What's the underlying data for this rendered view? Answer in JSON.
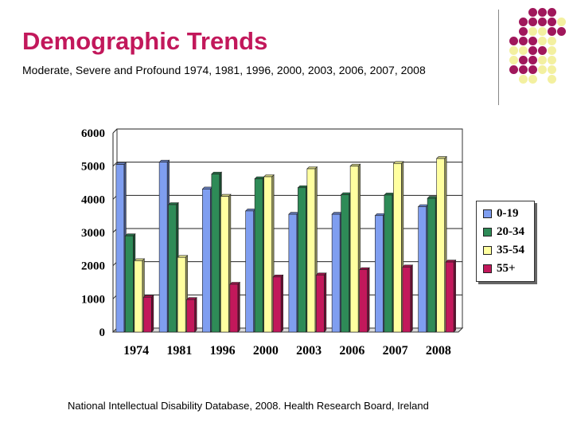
{
  "header": {
    "title": "Demographic Trends",
    "subtitle": "Moderate, Severe and Profound 1974, 1981, 1996, 2000, 2003, 2006, 2007, 2008"
  },
  "footer": {
    "source": "National Intellectual Disability Database, 2008. Health Research Board, Ireland"
  },
  "colors": {
    "title": "#c2185b",
    "dot_magenta": "#a0175b",
    "dot_yellow": "#f3f0a0",
    "series": [
      "#7f9ef0",
      "#2e8b57",
      "#ffffa0",
      "#c2185b"
    ]
  },
  "chart_data": {
    "type": "bar",
    "style": "3d-clustered",
    "categories": [
      "1974",
      "1981",
      "1996",
      "2000",
      "2003",
      "2006",
      "2007",
      "2008"
    ],
    "series": [
      {
        "name": "0-19",
        "values": [
          5050,
          5120,
          4310,
          3650,
          3550,
          3550,
          3510,
          3780
        ]
      },
      {
        "name": "20-34",
        "values": [
          2900,
          3840,
          4760,
          4620,
          4350,
          4140,
          4130,
          4030
        ]
      },
      {
        "name": "35-54",
        "values": [
          2150,
          2250,
          4090,
          4680,
          4920,
          5000,
          5080,
          5230
        ]
      },
      {
        "name": "55+",
        "values": [
          1050,
          980,
          1440,
          1660,
          1720,
          1880,
          1960,
          2110
        ]
      }
    ],
    "ylim": [
      0,
      6000
    ],
    "yticks": [
      "0",
      "1000",
      "2000",
      "3000",
      "4000",
      "5000",
      "6000"
    ],
    "grid": true,
    "legend": "right"
  }
}
